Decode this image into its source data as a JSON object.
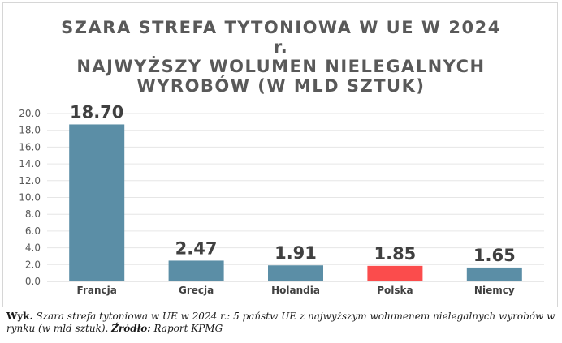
{
  "chart_data": {
    "type": "bar",
    "title_lines": [
      "SZARA STREFA TYTONIOWA W UE W 2024",
      "r.",
      "NAJWYŻSZY WOLUMEN NIELEGALNYCH",
      "WYROBÓW (W MLD SZTUK)"
    ],
    "categories": [
      "Francja",
      "Grecja",
      "Holandia",
      "Polska",
      "Niemcy"
    ],
    "values": [
      18.7,
      2.47,
      1.91,
      1.85,
      1.65
    ],
    "value_labels": [
      "18.70",
      "2.47",
      "1.91",
      "1.85",
      "1.65"
    ],
    "bar_colors": [
      "#5b8ea6",
      "#5b8ea6",
      "#5b8ea6",
      "#fb4c4c",
      "#5b8ea6"
    ],
    "y_ticks": [
      "0.0",
      "2.0",
      "4.0",
      "6.0",
      "8.0",
      "10.0",
      "12.0",
      "14.0",
      "16.0",
      "18.0",
      "20.0"
    ],
    "ylim": [
      0,
      20
    ],
    "grid": true,
    "xlabel": "",
    "ylabel": ""
  },
  "caption": {
    "lead": "Wyk.",
    "text1": " Szara strefa tytoniowa w UE w 2024 r.: 5 państw UE z najwyższym wolumenem nielegalnych wyrobów w rynku (w mld sztuk). ",
    "source_label": "Źródło:",
    "source": " Raport KPMG"
  }
}
